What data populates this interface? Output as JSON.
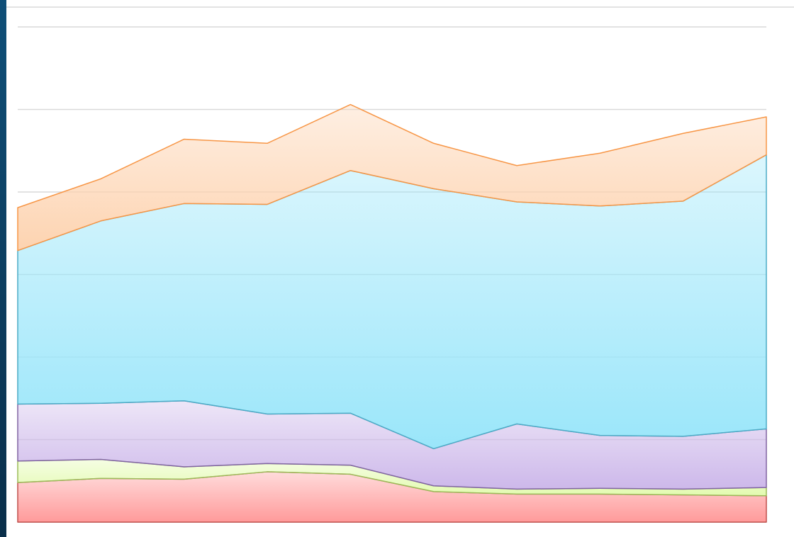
{
  "chart_data": {
    "type": "area",
    "stacked": true,
    "categories": [
      null,
      null,
      null,
      null,
      null,
      null,
      null,
      null,
      null,
      null
    ],
    "series": [
      {
        "color": "#ff9a9a",
        "line_color": "#c0504d",
        "values": [
          4.8,
          5.3,
          5.2,
          6.1,
          5.8,
          3.7,
          3.4,
          3.4,
          3.3,
          3.2
        ]
      },
      {
        "color": "#e3fbb0",
        "line_color": "#9bbb59",
        "values": [
          2.6,
          2.3,
          1.5,
          1.0,
          1.1,
          0.7,
          0.6,
          0.7,
          0.7,
          1.0
        ]
      },
      {
        "color": "#cdb8ea",
        "line_color": "#8064a2",
        "values": [
          6.9,
          6.8,
          8.0,
          6.0,
          6.3,
          4.5,
          7.9,
          6.4,
          6.4,
          7.1
        ]
      },
      {
        "color": "#9ae6fa",
        "line_color": "#4bacc6",
        "values": [
          18.6,
          22.1,
          23.9,
          25.4,
          29.4,
          31.5,
          26.9,
          27.8,
          28.5,
          33.2
        ]
      },
      {
        "color": "#fdd3b0",
        "line_color": "#f79646",
        "values": [
          5.2,
          5.1,
          7.8,
          7.4,
          8.0,
          5.5,
          4.4,
          6.4,
          8.2,
          4.6
        ]
      }
    ],
    "ylim": [
      0,
      60
    ],
    "yticks": [
      0,
      10,
      20,
      30,
      40,
      50,
      60
    ],
    "grid": true
  }
}
